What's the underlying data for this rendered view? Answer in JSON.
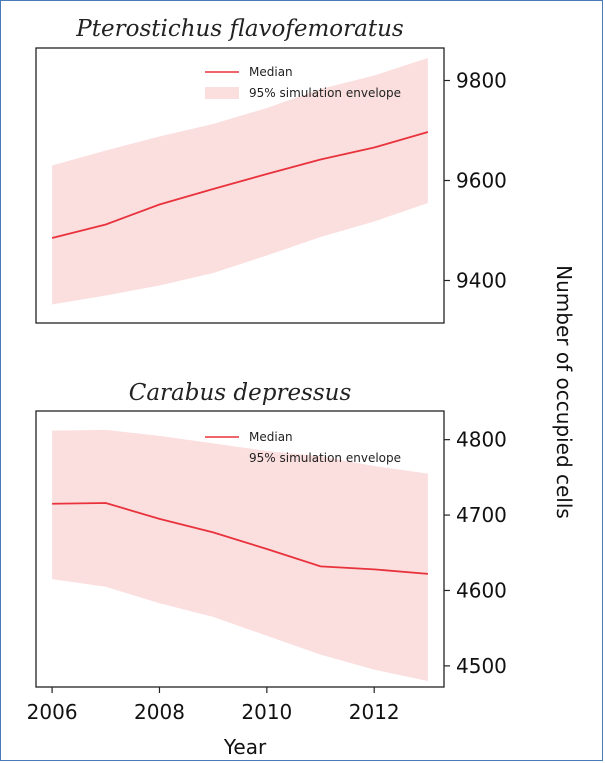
{
  "colors": {
    "median": "#e8323c",
    "envelope": "#fbdede",
    "axis": "#222222"
  },
  "chart_data": [
    {
      "type": "line",
      "title": "Pterostichus flavofemoratus",
      "xlabel": "",
      "ylabel": "",
      "xlim": [
        2005.7,
        2013.3
      ],
      "ylim": [
        9315,
        9865
      ],
      "yticks": [
        9400,
        9600,
        9800
      ],
      "legend": {
        "position": "top-right",
        "entries": [
          "Median",
          "95% simulation envelope"
        ]
      },
      "x": [
        2006,
        2007,
        2008,
        2009,
        2010,
        2011,
        2012,
        2013
      ],
      "series": [
        {
          "name": "Median",
          "values": [
            9485,
            9512,
            9552,
            9583,
            9613,
            9642,
            9666,
            9697
          ]
        },
        {
          "name": "95% simulation envelope",
          "lower": [
            9352,
            9370,
            9390,
            9415,
            9450,
            9487,
            9518,
            9555
          ],
          "upper": [
            9630,
            9660,
            9688,
            9713,
            9745,
            9783,
            9810,
            9845
          ]
        }
      ]
    },
    {
      "type": "line",
      "title": "Carabus depressus",
      "xlabel": "Year",
      "ylabel": "",
      "xlim": [
        2005.7,
        2013.3
      ],
      "ylim": [
        4472,
        4838
      ],
      "yticks": [
        4500,
        4600,
        4700,
        4800
      ],
      "xticks": [
        2006,
        2008,
        2010,
        2012
      ],
      "legend": {
        "position": "top-right",
        "entries": [
          "Median",
          "95% simulation envelope"
        ]
      },
      "x": [
        2006,
        2007,
        2008,
        2009,
        2010,
        2011,
        2012,
        2013
      ],
      "series": [
        {
          "name": "Median",
          "values": [
            4715,
            4716,
            4695,
            4677,
            4655,
            4632,
            4628,
            4622
          ]
        },
        {
          "name": "95% simulation envelope",
          "lower": [
            4615,
            4605,
            4583,
            4565,
            4540,
            4515,
            4495,
            4480
          ],
          "upper": [
            4812,
            4813,
            4805,
            4795,
            4785,
            4778,
            4765,
            4755
          ]
        }
      ]
    }
  ],
  "shared_ylabel": "Number of occupied cells"
}
